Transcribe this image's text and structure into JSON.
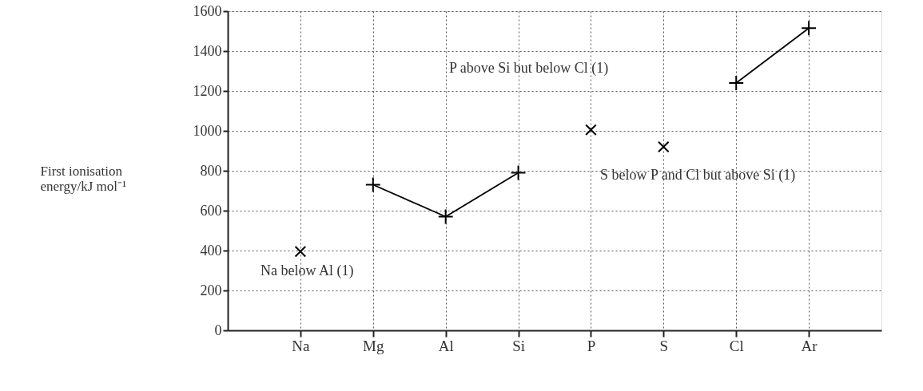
{
  "chart_data": {
    "type": "line",
    "ylabel": "First ionisation energy/kJ mol⁻¹",
    "categories": [
      "Na",
      "Mg",
      "Al",
      "Si",
      "P",
      "S",
      "Cl",
      "Ar"
    ],
    "series": [
      {
        "color": "#000000",
        "values": [
          null,
          730,
          570,
          790,
          null,
          null,
          null,
          null
        ]
      },
      {
        "color": "#000000",
        "values": [
          null,
          null,
          null,
          null,
          null,
          null,
          1240,
          1515
        ]
      },
      {
        "type": "scatter",
        "color": "#000000",
        "values": [
          395,
          null,
          null,
          null,
          1005,
          920,
          null,
          null
        ]
      }
    ],
    "ylim": [
      0,
      1600
    ],
    "yticks": [
      0,
      200,
      400,
      600,
      800,
      1000,
      1200,
      1400,
      1600
    ],
    "grid": true,
    "marker": "cross",
    "line_style": "solid",
    "annotations": [
      "Na below Al (1)",
      "P above Si but below Cl (1)",
      "S below P and Cl but above Si (1)"
    ]
  }
}
